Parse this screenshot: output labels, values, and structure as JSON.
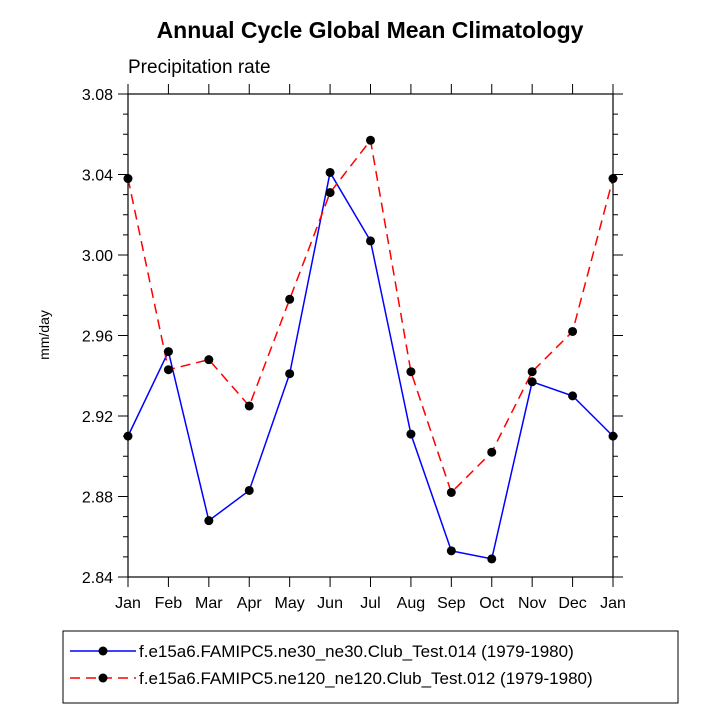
{
  "chart_data": {
    "type": "line",
    "title": "Annual Cycle Global Mean Climatology",
    "subtitle": "Precipitation rate",
    "xlabel": "",
    "ylabel": "mm/day",
    "categories": [
      "Jan",
      "Feb",
      "Mar",
      "Apr",
      "May",
      "Jun",
      "Jul",
      "Aug",
      "Sep",
      "Oct",
      "Nov",
      "Dec",
      "Jan"
    ],
    "ylim": [
      2.84,
      3.08
    ],
    "yticks": [
      "2.84",
      "2.88",
      "2.92",
      "2.96",
      "3.00",
      "3.04",
      "3.08"
    ],
    "grid": false,
    "legend_position": "bottom",
    "series": [
      {
        "name": "f.e15a6.FAMIPC5.ne30_ne30.Club_Test.014 (1979-1980)",
        "color": "#0000ff",
        "line_style": "solid",
        "values": [
          2.91,
          2.952,
          2.868,
          2.883,
          2.941,
          3.041,
          3.007,
          2.911,
          2.853,
          2.849,
          2.937,
          2.93,
          2.91
        ]
      },
      {
        "name": "f.e15a6.FAMIPC5.ne120_ne120.Club_Test.012 (1979-1980)",
        "color": "#ff0000",
        "line_style": "dashed",
        "values": [
          3.038,
          2.943,
          2.948,
          2.925,
          2.978,
          3.031,
          3.057,
          2.942,
          2.882,
          2.902,
          2.942,
          2.962,
          3.038
        ]
      }
    ]
  }
}
